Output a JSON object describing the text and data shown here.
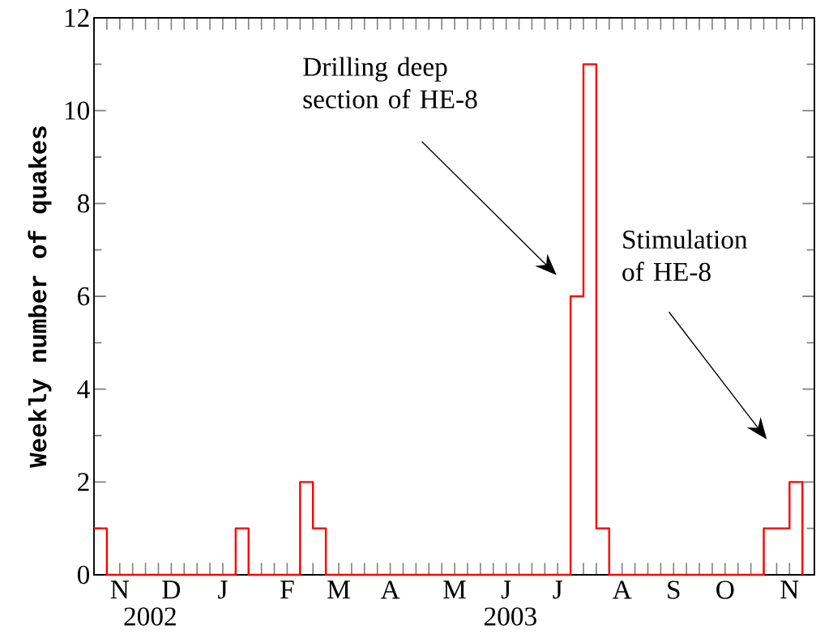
{
  "chart_data": {
    "type": "step",
    "ylabel": "Weekly number of quakes",
    "color": "#ff0000",
    "marker": "none",
    "grid": false,
    "categories": [
      null,
      null,
      "N",
      null,
      null,
      null,
      "D",
      null,
      null,
      null,
      "J",
      null,
      null,
      null,
      null,
      "F",
      null,
      null,
      null,
      "M",
      null,
      null,
      null,
      "A",
      null,
      null,
      null,
      null,
      "M",
      null,
      null,
      null,
      "J",
      null,
      null,
      null,
      "J",
      null,
      null,
      null,
      null,
      "A",
      null,
      null,
      null,
      "S",
      null,
      null,
      null,
      "O",
      null,
      null,
      null,
      null,
      "N",
      null
    ],
    "values": [
      1,
      0,
      0,
      0,
      0,
      0,
      0,
      0,
      0,
      0,
      0,
      1,
      0,
      0,
      0,
      0,
      2,
      1,
      0,
      0,
      0,
      0,
      0,
      0,
      0,
      0,
      0,
      0,
      0,
      0,
      0,
      0,
      0,
      0,
      0,
      0,
      0,
      6,
      11,
      1,
      0,
      0,
      0,
      0,
      0,
      0,
      0,
      0,
      0,
      0,
      0,
      0,
      1,
      1,
      2,
      0
    ],
    "ylim": [
      0,
      12
    ],
    "yticks": [
      0,
      2,
      4,
      6,
      8,
      10,
      12
    ],
    "annotations": [
      "Drilling deep section of HE-8",
      "Stimulation of HE-8",
      "2002",
      "2003"
    ]
  }
}
